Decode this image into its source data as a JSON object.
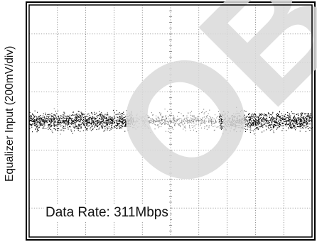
{
  "chart_data": {
    "type": "scatter",
    "title": "",
    "xlabel": "",
    "ylabel": "Equalizer Input (200mV/div)",
    "grid": true,
    "grid_divisions": {
      "x": 10,
      "y": 8
    },
    "y_units_per_division": "200mV/div",
    "annotation": "Data Rate: 311Mbps",
    "series": [
      {
        "description_source": "eye-diagram noise band",
        "y_center_div": 4.0,
        "y_halfwidth_div": 0.5,
        "eye_opening_center_x_div": 5.2,
        "colors": {
          "dense": "#000000",
          "sparse": "#808080"
        }
      }
    ],
    "watermark": {
      "text": "OB",
      "color": "#d9d9d9"
    }
  }
}
